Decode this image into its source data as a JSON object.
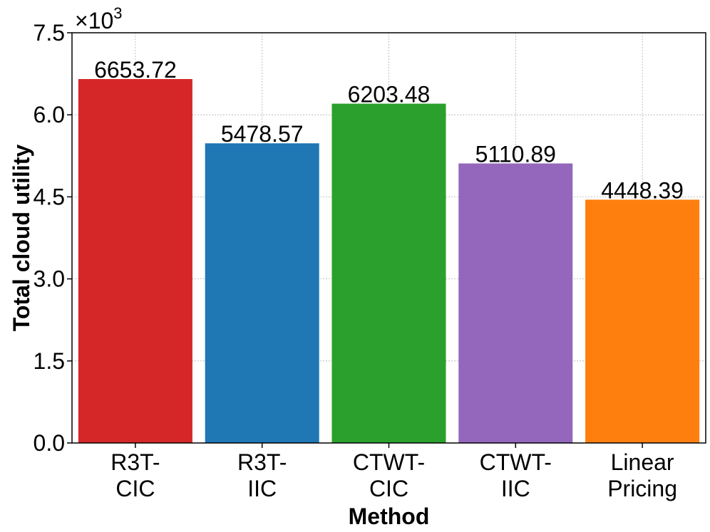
{
  "chart_data": {
    "type": "bar",
    "categories": [
      [
        "R3T-",
        "CIC"
      ],
      [
        "R3T-",
        "IIC"
      ],
      [
        "CTWT-",
        "CIC"
      ],
      [
        "CTWT-",
        "IIC"
      ],
      [
        "Linear",
        "Pricing"
      ]
    ],
    "values": [
      6653.72,
      5478.57,
      6203.48,
      5110.89,
      4448.39
    ],
    "value_labels": [
      "6653.72",
      "5478.57",
      "6203.48",
      "5110.89",
      "4448.39"
    ],
    "colors": [
      "#d62728",
      "#1f77b4",
      "#2ca02c",
      "#9467bd",
      "#ff7f0e"
    ],
    "xlabel": "Method",
    "ylabel": "Total cloud utility",
    "ylim": [
      0,
      7500
    ],
    "yticks": [
      0,
      1500,
      3000,
      4500,
      6000,
      7500
    ],
    "ytick_labels": [
      "0.0",
      "1.5",
      "3.0",
      "4.5",
      "6.0",
      "7.5"
    ],
    "y_multiplier_label": "×10",
    "y_multiplier_exponent": "3",
    "grid": true
  }
}
